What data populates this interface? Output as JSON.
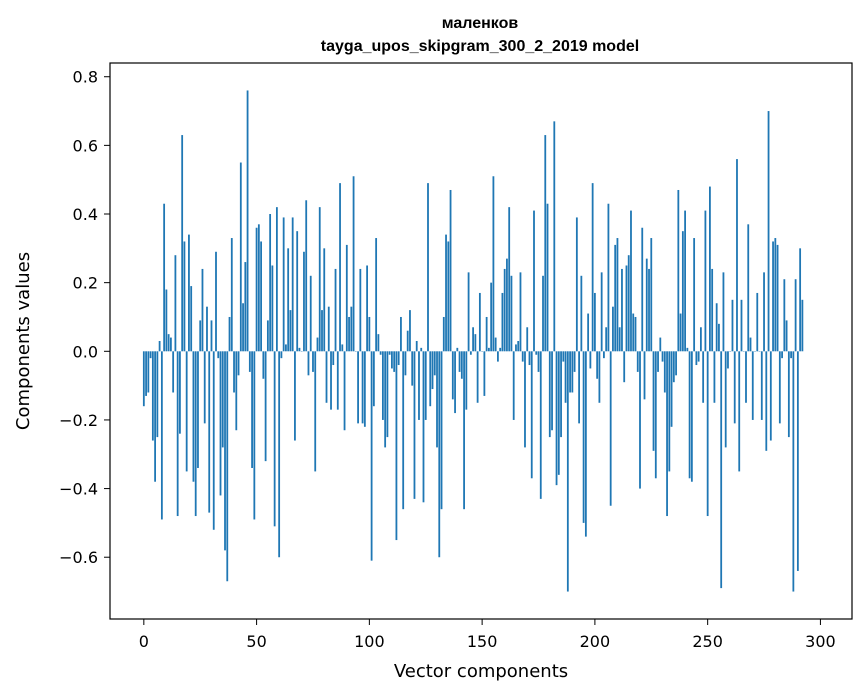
{
  "chart_data": {
    "type": "bar",
    "title": "маленков",
    "subtitle": "tayga_upos_skipgram_300_2_2019 model",
    "xlabel": "Vector components",
    "ylabel": "Components values",
    "xlim": [
      -15,
      314
    ],
    "ylim": [
      -0.78,
      0.84
    ],
    "x_ticks": [
      0,
      50,
      100,
      150,
      200,
      250,
      300
    ],
    "y_ticks": [
      -0.6,
      -0.4,
      -0.2,
      0.0,
      0.2,
      0.4,
      0.6,
      0.8
    ],
    "x_tick_labels": [
      "0",
      "50",
      "100",
      "150",
      "200",
      "250",
      "300"
    ],
    "y_tick_labels": [
      "−0.6",
      "−0.4",
      "−0.2",
      "0.0",
      "0.2",
      "0.4",
      "0.6",
      "0.8"
    ],
    "bar_color": "#1f77b4",
    "values": [
      -0.16,
      -0.13,
      -0.12,
      -0.02,
      -0.26,
      -0.38,
      -0.25,
      0.03,
      -0.49,
      0.43,
      0.18,
      0.05,
      0.04,
      -0.12,
      0.28,
      -0.48,
      -0.24,
      0.63,
      0.32,
      -0.35,
      0.34,
      0.19,
      -0.38,
      -0.48,
      -0.34,
      0.09,
      0.24,
      -0.21,
      0.13,
      -0.47,
      0.09,
      -0.52,
      0.29,
      -0.02,
      -0.42,
      -0.28,
      -0.58,
      -0.67,
      0.1,
      0.33,
      -0.12,
      -0.23,
      -0.07,
      0.55,
      0.14,
      0.26,
      0.76,
      -0.06,
      -0.34,
      -0.49,
      0.36,
      0.37,
      0.32,
      -0.08,
      -0.32,
      0.09,
      0.4,
      0.25,
      -0.51,
      0.42,
      -0.6,
      -0.02,
      0.39,
      0.02,
      0.3,
      0.12,
      0.39,
      -0.26,
      0.35,
      0.01,
      0.0,
      0.29,
      0.44,
      -0.07,
      0.22,
      -0.06,
      -0.35,
      0.04,
      0.42,
      0.12,
      0.3,
      -0.15,
      0.13,
      -0.17,
      -0.04,
      0.24,
      -0.17,
      0.49,
      0.02,
      -0.23,
      0.31,
      0.1,
      0.13,
      0.51,
      0.0,
      -0.21,
      0.24,
      -0.21,
      -0.22,
      0.25,
      0.1,
      -0.61,
      -0.16,
      0.33,
      0.05,
      -0.01,
      -0.2,
      -0.28,
      -0.25,
      -0.01,
      -0.05,
      -0.06,
      -0.55,
      -0.04,
      0.1,
      -0.46,
      -0.07,
      0.06,
      0.12,
      -0.1,
      -0.43,
      0.03,
      -0.2,
      0.01,
      -0.44,
      -0.2,
      0.49,
      -0.16,
      -0.11,
      -0.07,
      -0.28,
      -0.6,
      -0.46,
      0.1,
      0.34,
      0.32,
      0.47,
      -0.14,
      -0.18,
      0.01,
      -0.06,
      -0.08,
      -0.46,
      -0.17,
      0.23,
      -0.01,
      0.07,
      0.05,
      -0.15,
      0.17,
      0.0,
      -0.13,
      0.1,
      0.01,
      0.2,
      0.51,
      0.04,
      -0.03,
      0.01,
      0.17,
      0.24,
      0.27,
      0.42,
      0.22,
      -0.2,
      0.02,
      0.03,
      0.23,
      -0.03,
      -0.28,
      0.07,
      -0.04,
      -0.37,
      0.41,
      -0.01,
      -0.06,
      -0.43,
      0.22,
      0.63,
      0.43,
      -0.25,
      -0.23,
      0.67,
      -0.39,
      -0.36,
      -0.25,
      -0.03,
      -0.15,
      -0.7,
      -0.12,
      -0.12,
      -0.06,
      0.39,
      -0.21,
      0.22,
      -0.5,
      -0.54,
      0.11,
      -0.05,
      0.49,
      0.17,
      -0.08,
      -0.15,
      0.23,
      -0.02,
      0.07,
      0.43,
      -0.45,
      0.13,
      0.31,
      0.33,
      0.07,
      0.24,
      -0.09,
      0.25,
      0.28,
      0.41,
      0.11,
      0.1,
      -0.06,
      -0.4,
      0.36,
      -0.14,
      0.27,
      0.24,
      0.33,
      -0.29,
      -0.37,
      -0.06,
      0.04,
      -0.03,
      -0.12,
      -0.48,
      -0.35,
      -0.22,
      -0.09,
      -0.07,
      0.47,
      0.11,
      0.35,
      0.41,
      0.01,
      -0.37,
      -0.38,
      0.33,
      -0.04,
      -0.03,
      0.07,
      -0.15,
      0.41,
      -0.48,
      0.48,
      0.24,
      -0.15,
      0.14,
      0.08,
      -0.69,
      0.23,
      -0.28,
      -0.05,
      0.0,
      0.15,
      -0.21,
      0.56,
      -0.35,
      0.15,
      0.0,
      -0.15,
      0.37,
      0.04,
      -0.2,
      0.0,
      0.17,
      0.0,
      -0.2,
      0.23,
      -0.29,
      0.7,
      -0.26,
      0.32,
      0.33,
      0.31,
      -0.21,
      -0.02,
      0.21,
      0.09,
      -0.25,
      -0.02,
      -0.7,
      0.21,
      -0.64,
      0.3,
      0.15
    ]
  }
}
